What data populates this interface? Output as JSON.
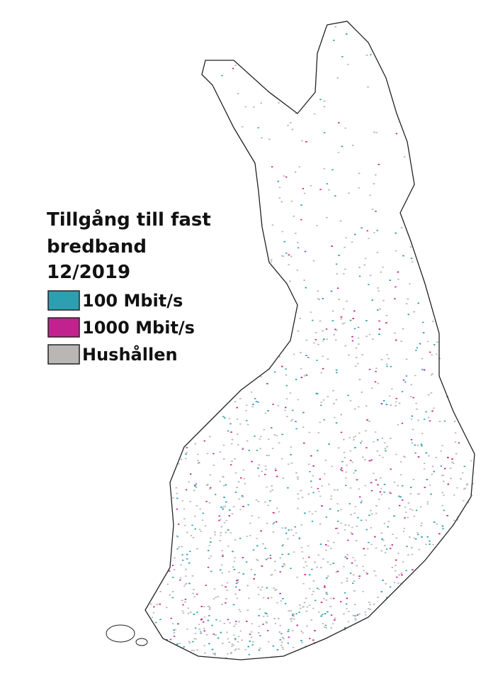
{
  "title_lines": [
    "Tillgång till fast",
    "bredband",
    "12/2019"
  ],
  "legend": [
    {
      "label": "100 Mbit/s",
      "color": "#2e9fb0"
    },
    {
      "label": "1000 Mbit/s",
      "color": "#c1228e"
    },
    {
      "label": "Hushållen",
      "color": "#b9b6b4"
    }
  ]
}
